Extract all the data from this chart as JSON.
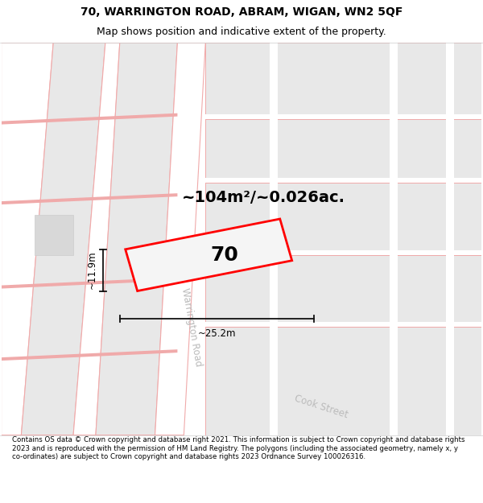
{
  "title_line1": "70, WARRINGTON ROAD, ABRAM, WIGAN, WN2 5QF",
  "title_line2": "Map shows position and indicative extent of the property.",
  "footer_text": "Contains OS data © Crown copyright and database right 2021. This information is subject to Crown copyright and database rights 2023 and is reproduced with the permission of HM Land Registry. The polygons (including the associated geometry, namely x, y co-ordinates) are subject to Crown copyright and database rights 2023 Ordnance Survey 100026316.",
  "area_label": "~104m²/~0.026ac.",
  "number_label": "70",
  "width_label": "~25.2m",
  "height_label": "~11.9m",
  "bg_color": "#ffffff",
  "road_line_color": "#f0aaaa",
  "highlight_color": "#ff0000",
  "block_fill": "#e8e8e8",
  "prop_fill": "#f0f0f0",
  "street_label_color": "#bbbbbb",
  "dim_line_color": "#111111",
  "title_fontsize": 10,
  "subtitle_fontsize": 9,
  "area_fontsize": 14,
  "number_fontsize": 18,
  "dim_fontsize": 8.5,
  "street_fontsize": 8.5,
  "footer_fontsize": 6.2
}
